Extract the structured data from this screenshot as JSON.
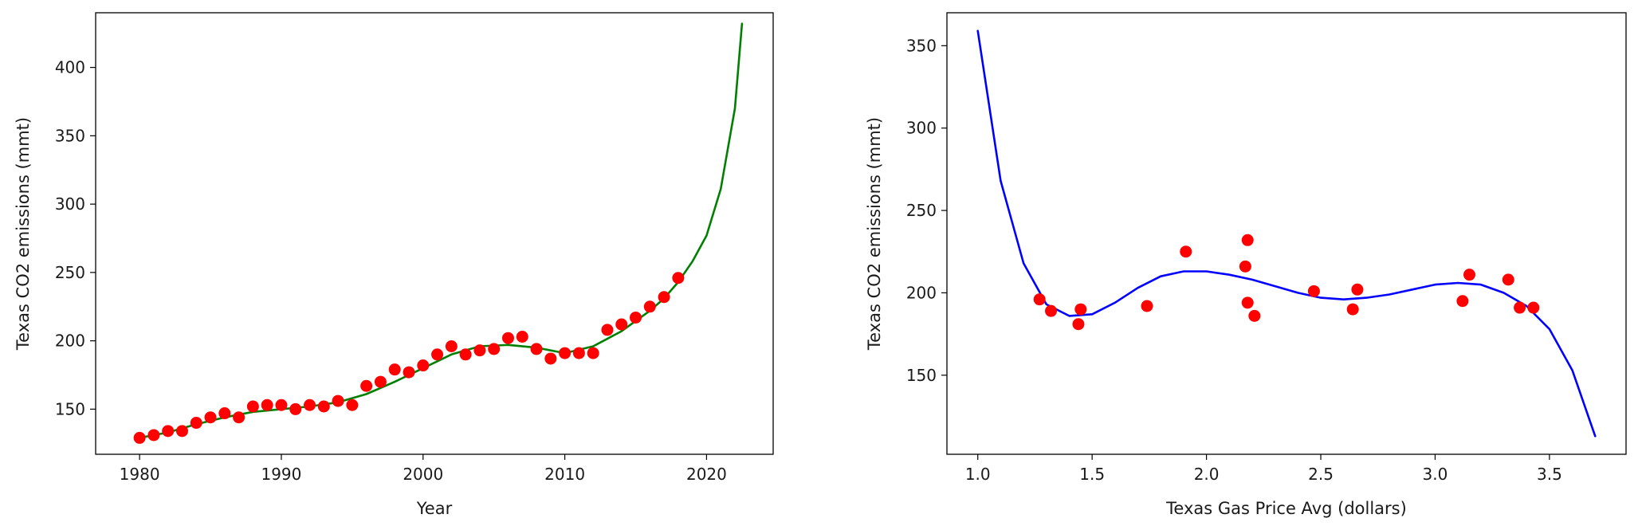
{
  "chart_data": [
    {
      "type": "scatter",
      "xlabel": "Year",
      "ylabel": "Texas CO2 emissions (mmt)",
      "xlim": [
        1976.9,
        2024.7
      ],
      "ylim": [
        117,
        440
      ],
      "xticks": [
        1980,
        1990,
        2000,
        2010,
        2020
      ],
      "yticks": [
        150,
        200,
        250,
        300,
        350,
        400
      ],
      "grid": false,
      "series": [
        {
          "kind": "points",
          "color": "#ff0000",
          "x": [
            1980,
            1981,
            1982,
            1983,
            1984,
            1985,
            1986,
            1987,
            1988,
            1989,
            1990,
            1991,
            1992,
            1993,
            1994,
            1995,
            1996,
            1997,
            1998,
            1999,
            2000,
            2001,
            2002,
            2003,
            2004,
            2005,
            2006,
            2007,
            2008,
            2009,
            2010,
            2011,
            2012,
            2013,
            2014,
            2015,
            2016,
            2017,
            2018
          ],
          "y": [
            129,
            131,
            134,
            134,
            140,
            144,
            147,
            144,
            152,
            153,
            153,
            150,
            153,
            152,
            156,
            153,
            167,
            170,
            179,
            177,
            182,
            190,
            196,
            190,
            193,
            194,
            202,
            203,
            194,
            187,
            191,
            191,
            191,
            208,
            212,
            217,
            225,
            232,
            246
          ]
        },
        {
          "kind": "line",
          "color": "#008000",
          "x": [
            1980,
            1982,
            1984,
            1986,
            1988,
            1990,
            1992,
            1994,
            1996,
            1998,
            2000,
            2002,
            2004,
            2006,
            2008,
            2010,
            2012,
            2014,
            2016,
            2017,
            2018,
            2019,
            2020,
            2021,
            2022,
            2022.5
          ],
          "y": [
            129,
            133,
            139,
            144,
            148,
            150,
            152,
            155,
            161,
            170,
            180,
            190,
            196,
            197,
            195,
            191,
            196,
            207,
            222,
            231,
            243,
            258,
            277,
            311,
            370,
            432
          ]
        }
      ]
    },
    {
      "type": "scatter",
      "xlabel": "Texas Gas Price Avg (dollars)",
      "ylabel": "Texas CO2 emissions (mmt)",
      "xlim": [
        0.865,
        3.835
      ],
      "ylim": [
        102,
        370
      ],
      "xticks": [
        1.0,
        1.5,
        2.0,
        2.5,
        3.0,
        3.5
      ],
      "yticks": [
        150,
        200,
        250,
        300,
        350
      ],
      "grid": false,
      "series": [
        {
          "kind": "points",
          "color": "#ff0000",
          "x": [
            1.27,
            1.32,
            1.44,
            1.45,
            1.74,
            1.91,
            2.17,
            2.18,
            2.18,
            2.21,
            2.47,
            2.64,
            2.66,
            3.12,
            3.15,
            3.32,
            3.37,
            3.43
          ],
          "y": [
            196,
            189,
            181,
            190,
            192,
            225,
            216,
            232,
            194,
            186,
            201,
            190,
            202,
            195,
            211,
            208,
            191,
            191
          ],
          "x_labels_fmt": "decimal1"
        },
        {
          "kind": "line",
          "color": "#0000ff",
          "x": [
            1.0,
            1.1,
            1.2,
            1.3,
            1.4,
            1.5,
            1.6,
            1.7,
            1.8,
            1.9,
            2.0,
            2.1,
            2.2,
            2.3,
            2.4,
            2.5,
            2.6,
            2.7,
            2.8,
            2.9,
            3.0,
            3.1,
            3.2,
            3.3,
            3.4,
            3.5,
            3.6,
            3.7
          ],
          "y": [
            359,
            268,
            218,
            193,
            186,
            187,
            194,
            203,
            210,
            213,
            213,
            211,
            208,
            204,
            200,
            197,
            196,
            197,
            199,
            202,
            205,
            206,
            205,
            200,
            192,
            178,
            153,
            113
          ]
        }
      ]
    }
  ]
}
